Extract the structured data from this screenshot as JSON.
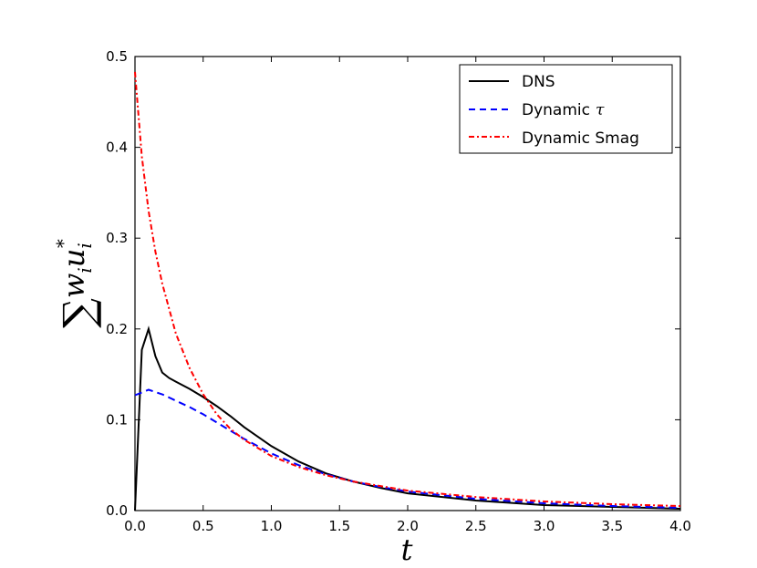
{
  "chart_data": {
    "type": "line",
    "xlabel": "t",
    "ylabel": "∑ w_i u_i*",
    "ylabel_parts": {
      "sigma": "∑",
      "w": "w",
      "w_sub": "i",
      "u": "u",
      "u_sub": "i",
      "u_sup": "*"
    },
    "xlim": [
      0,
      4.0
    ],
    "ylim": [
      0,
      0.5
    ],
    "xticks": [
      "0.0",
      "0.5",
      "1.0",
      "1.5",
      "2.0",
      "2.5",
      "3.0",
      "3.5",
      "4.0"
    ],
    "yticks": [
      "0.0",
      "0.1",
      "0.2",
      "0.3",
      "0.4",
      "0.5"
    ],
    "grid": false,
    "legend_position": "top-right",
    "series": [
      {
        "name": "DNS",
        "color": "#000000",
        "style": "solid",
        "x": [
          0.0,
          0.05,
          0.1,
          0.15,
          0.2,
          0.25,
          0.3,
          0.4,
          0.5,
          0.6,
          0.7,
          0.8,
          1.0,
          1.2,
          1.4,
          1.6,
          1.8,
          2.0,
          2.5,
          3.0,
          3.5,
          4.0
        ],
        "y": [
          0.0,
          0.177,
          0.2,
          0.17,
          0.152,
          0.146,
          0.142,
          0.134,
          0.125,
          0.115,
          0.104,
          0.092,
          0.071,
          0.054,
          0.041,
          0.032,
          0.025,
          0.019,
          0.011,
          0.006,
          0.004,
          0.002
        ]
      },
      {
        "name": "Dynamic τ",
        "name_text": "Dynamic",
        "name_symbol": "τ",
        "color": "#0000ff",
        "style": "dashed",
        "x": [
          0.0,
          0.1,
          0.2,
          0.3,
          0.4,
          0.5,
          0.6,
          0.7,
          0.8,
          1.0,
          1.2,
          1.4,
          1.6,
          1.8,
          2.0,
          2.5,
          3.0,
          3.5,
          4.0
        ],
        "y": [
          0.127,
          0.133,
          0.128,
          0.121,
          0.114,
          0.106,
          0.097,
          0.088,
          0.079,
          0.063,
          0.05,
          0.04,
          0.032,
          0.026,
          0.021,
          0.013,
          0.008,
          0.005,
          0.003
        ]
      },
      {
        "name": "Dynamic Smag",
        "color": "#ff0000",
        "style": "dashdot",
        "x": [
          0.0,
          0.05,
          0.1,
          0.15,
          0.2,
          0.3,
          0.4,
          0.5,
          0.6,
          0.7,
          0.8,
          1.0,
          1.2,
          1.4,
          1.6,
          1.8,
          2.0,
          2.5,
          3.0,
          3.5,
          4.0
        ],
        "y": [
          0.483,
          0.39,
          0.33,
          0.285,
          0.25,
          0.195,
          0.157,
          0.128,
          0.106,
          0.09,
          0.078,
          0.06,
          0.048,
          0.039,
          0.032,
          0.027,
          0.022,
          0.015,
          0.01,
          0.007,
          0.005
        ]
      }
    ]
  }
}
